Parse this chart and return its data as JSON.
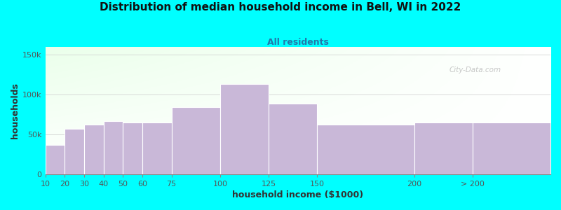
{
  "title": "Distribution of median household income in Bell, WI in 2022",
  "subtitle": "All residents",
  "xlabel": "household income ($1000)",
  "ylabel": "households",
  "background_color": "#00FFFF",
  "bar_color": "#c9b8d8",
  "bar_edgecolor": "#ffffff",
  "categories": [
    "10",
    "20",
    "30",
    "40",
    "50",
    "60",
    "75",
    "100",
    "125",
    "150",
    "200",
    "> 200"
  ],
  "values": [
    37000,
    57000,
    62000,
    67000,
    65000,
    65000,
    84000,
    113000,
    89000,
    62000,
    65000,
    65000
  ],
  "ylim": [
    0,
    160000
  ],
  "yticks": [
    0,
    50000,
    100000,
    150000
  ],
  "ytick_labels": [
    "0",
    "50k",
    "100k",
    "150k"
  ],
  "bar_edges": [
    10,
    20,
    30,
    40,
    50,
    60,
    75,
    100,
    125,
    150,
    200,
    230,
    270
  ],
  "xtick_labels": [
    "10",
    "20",
    "30",
    "40",
    "50",
    "60",
    "75",
    "100",
    "125",
    "150",
    "200",
    "> 200"
  ],
  "watermark": "City-Data.com",
  "title_fontsize": 11,
  "subtitle_fontsize": 9,
  "subtitle_color": "#2277aa",
  "grid_color": "#cccccc",
  "tick_label_color": "#555555"
}
